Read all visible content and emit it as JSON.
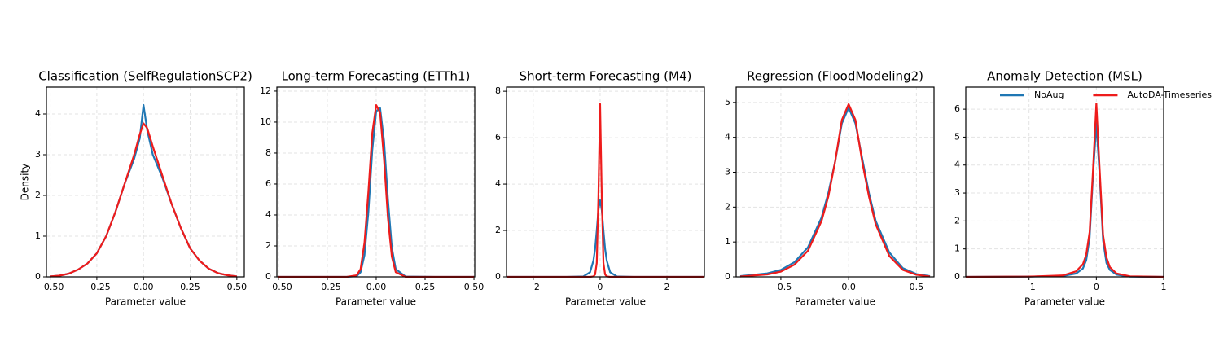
{
  "chart_data": [
    {
      "type": "line",
      "title": "Classification (SelfRegulationSCP2)",
      "xlabel": "Parameter value",
      "ylabel": "Density",
      "x": [
        -0.5,
        -0.45,
        -0.4,
        -0.35,
        -0.3,
        -0.25,
        -0.2,
        -0.15,
        -0.1,
        -0.05,
        -0.02,
        0,
        0.02,
        0.05,
        0.1,
        0.15,
        0.2,
        0.25,
        0.3,
        0.35,
        0.4,
        0.45,
        0.5
      ],
      "series": [
        {
          "color": "#1f77b4",
          "values": [
            0.01,
            0.03,
            0.08,
            0.18,
            0.33,
            0.58,
            1.0,
            1.6,
            2.3,
            2.9,
            3.4,
            4.22,
            3.6,
            3.0,
            2.45,
            1.8,
            1.2,
            0.7,
            0.4,
            0.2,
            0.09,
            0.04,
            0.01
          ]
        },
        {
          "color": "#ee1c1c",
          "values": [
            0.01,
            0.03,
            0.08,
            0.18,
            0.33,
            0.58,
            1.0,
            1.6,
            2.3,
            3.0,
            3.5,
            3.77,
            3.65,
            3.2,
            2.5,
            1.8,
            1.2,
            0.7,
            0.4,
            0.2,
            0.09,
            0.04,
            0.01
          ]
        }
      ],
      "xlim": [
        -0.52,
        0.54
      ],
      "ylim": [
        0,
        4.66
      ],
      "xticks": [
        {
          "value": -0.5,
          "label": "−0.50"
        },
        {
          "value": -0.25,
          "label": "−0.25"
        },
        {
          "value": 0,
          "label": "0.00"
        },
        {
          "value": 0.25,
          "label": "0.25"
        },
        {
          "value": 0.5,
          "label": "0.50"
        }
      ],
      "yticks": [
        0,
        1,
        2,
        3,
        4
      ],
      "grid": true
    },
    {
      "type": "line",
      "title": "Long-term Forecasting (ETTh1)",
      "xlabel": "Parameter value",
      "x": [
        -0.5,
        -0.3,
        -0.15,
        -0.1,
        -0.08,
        -0.06,
        -0.04,
        -0.02,
        0,
        0.02,
        0.04,
        0.06,
        0.08,
        0.1,
        0.15,
        0.3,
        0.5
      ],
      "series": [
        {
          "color": "#1f77b4",
          "values": [
            0,
            0,
            0,
            0.05,
            0.3,
            1.4,
            4.2,
            8.2,
            10.7,
            10.9,
            8.8,
            5.0,
            1.9,
            0.5,
            0.02,
            0,
            0
          ]
        },
        {
          "color": "#ee1c1c",
          "values": [
            0,
            0,
            0,
            0.1,
            0.5,
            2.2,
            5.5,
            9.3,
            11.1,
            10.6,
            7.6,
            3.8,
            1.3,
            0.3,
            0,
            0,
            0
          ]
        }
      ],
      "xlim": [
        -0.508,
        0.504
      ],
      "ylim": [
        0,
        12.26
      ],
      "xticks": [
        {
          "value": -0.5,
          "label": "−0.50"
        },
        {
          "value": -0.25,
          "label": "−0.25"
        },
        {
          "value": 0,
          "label": "0.00"
        },
        {
          "value": 0.25,
          "label": "0.25"
        },
        {
          "value": 0.5,
          "label": "0.50"
        }
      ],
      "yticks": [
        0,
        2,
        4,
        6,
        8,
        10,
        12
      ],
      "grid": true
    },
    {
      "type": "line",
      "title": "Short-term Forecasting (M4)",
      "xlabel": "Parameter value",
      "x": [
        -2.8,
        -1,
        -0.5,
        -0.3,
        -0.2,
        -0.15,
        -0.1,
        -0.05,
        0,
        0.05,
        0.1,
        0.15,
        0.2,
        0.3,
        0.5,
        1,
        3.1
      ],
      "series": [
        {
          "color": "#1f77b4",
          "values": [
            0,
            0,
            0.02,
            0.2,
            0.7,
            1.2,
            2.0,
            2.9,
            3.3,
            2.9,
            2.0,
            1.2,
            0.7,
            0.2,
            0.02,
            0,
            0
          ]
        },
        {
          "color": "#ee1c1c",
          "values": [
            0,
            0,
            0,
            0,
            0.02,
            0.1,
            0.6,
            3.5,
            7.45,
            3.5,
            0.6,
            0.1,
            0.02,
            0,
            0,
            0,
            0
          ]
        }
      ],
      "xlim": [
        -2.8,
        3.12
      ],
      "ylim": [
        0,
        8.18
      ],
      "xticks": [
        {
          "value": -2,
          "label": "−2"
        },
        0,
        2
      ],
      "yticks": [
        0,
        2,
        4,
        6,
        8
      ],
      "grid": true
    },
    {
      "type": "line",
      "title": "Regression (FloodModeling2)",
      "xlabel": "Parameter value",
      "x": [
        -0.8,
        -0.6,
        -0.5,
        -0.4,
        -0.3,
        -0.2,
        -0.15,
        -0.1,
        -0.05,
        0,
        0.05,
        0.1,
        0.15,
        0.2,
        0.3,
        0.4,
        0.5,
        0.6
      ],
      "series": [
        {
          "color": "#1f77b4",
          "values": [
            0.02,
            0.1,
            0.2,
            0.42,
            0.85,
            1.7,
            2.4,
            3.3,
            4.4,
            4.85,
            4.4,
            3.4,
            2.4,
            1.6,
            0.7,
            0.25,
            0.08,
            0.02
          ]
        },
        {
          "color": "#ee1c1c",
          "values": [
            0.01,
            0.07,
            0.15,
            0.35,
            0.75,
            1.6,
            2.3,
            3.3,
            4.5,
            4.95,
            4.5,
            3.3,
            2.3,
            1.5,
            0.6,
            0.2,
            0.06,
            0.01
          ]
        }
      ],
      "xlim": [
        -0.83,
        0.63
      ],
      "ylim": [
        0,
        5.44
      ],
      "xticks": [
        {
          "value": -0.5,
          "label": "−0.5"
        },
        {
          "value": 0,
          "label": "0.0"
        },
        {
          "value": 0.5,
          "label": "0.5"
        }
      ],
      "yticks": [
        0,
        1,
        2,
        3,
        4,
        5
      ],
      "grid": true
    },
    {
      "type": "line",
      "title": "Anomaly Detection (MSL)",
      "xlabel": "Parameter value",
      "x": [
        -1.94,
        -1,
        -0.5,
        -0.3,
        -0.2,
        -0.15,
        -0.1,
        -0.05,
        0,
        0.05,
        0.1,
        0.15,
        0.2,
        0.3,
        0.5,
        1
      ],
      "series": [
        {
          "name": "NoAug",
          "color": "#1f77b4",
          "values": [
            0,
            0.01,
            0.03,
            0.12,
            0.3,
            0.6,
            1.4,
            3.6,
            5.5,
            3.6,
            1.3,
            0.5,
            0.25,
            0.08,
            0.01,
            0
          ]
        },
        {
          "name": "AutoDA-Timeseries",
          "color": "#ee1c1c",
          "values": [
            0,
            0.01,
            0.05,
            0.2,
            0.45,
            0.8,
            1.6,
            3.8,
            6.2,
            3.8,
            1.5,
            0.7,
            0.35,
            0.12,
            0.02,
            0
          ]
        }
      ],
      "xlim": [
        -1.94,
        1
      ],
      "ylim": [
        0,
        6.79
      ],
      "xticks": [
        {
          "value": -1,
          "label": "−1"
        },
        0,
        1
      ],
      "yticks": [
        0,
        1,
        2,
        3,
        4,
        5,
        6
      ],
      "grid": true,
      "legend": "upper center"
    }
  ]
}
